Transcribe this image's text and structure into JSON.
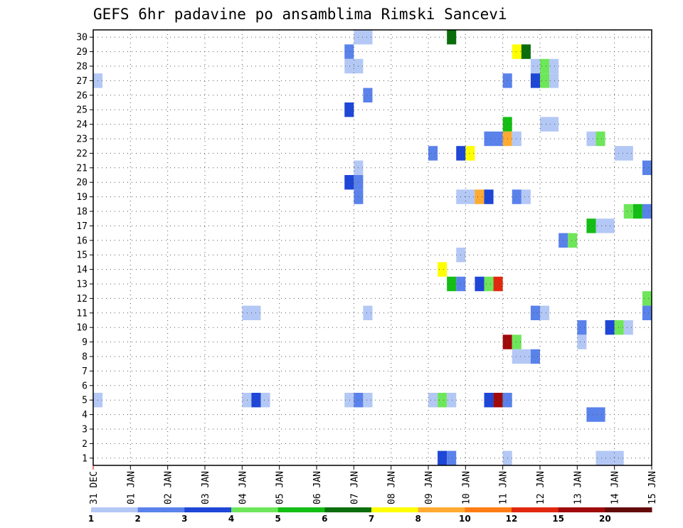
{
  "chart_data": {
    "type": "heatmap",
    "title": "GEFS 6hr padavine po ansamblima Rimski Sancevi",
    "xlabel": "",
    "ylabel": "",
    "x_ticks": [
      "31 DEC",
      "01 JAN",
      "02 JAN",
      "03 JAN",
      "04 JAN",
      "05 JAN",
      "06 JAN",
      "07 JAN",
      "08 JAN",
      "09 JAN",
      "10 JAN",
      "11 JAN",
      "12 JAN",
      "13 JAN",
      "14 JAN",
      "15 JAN"
    ],
    "y_ticks": [
      "1",
      "2",
      "3",
      "4",
      "5",
      "6",
      "7",
      "8",
      "9",
      "10",
      "11",
      "12",
      "13",
      "14",
      "15",
      "16",
      "17",
      "18",
      "19",
      "20",
      "21",
      "22",
      "23",
      "24",
      "25",
      "26",
      "27",
      "28",
      "29",
      "30"
    ],
    "xlim": [
      0,
      15
    ],
    "ylim": [
      0.5,
      30.5
    ],
    "grid": true,
    "colorbar": {
      "labels": [
        "1",
        "2",
        "3",
        "4",
        "5",
        "6",
        "7",
        "8",
        "10",
        "12",
        "15",
        "20"
      ],
      "colors": [
        "#b4c8f5",
        "#5a82eb",
        "#1e46d7",
        "#6ee65a",
        "#14be14",
        "#0a6e0a",
        "#ffff00",
        "#ffaa32",
        "#ff7d14",
        "#e1280f",
        "#a00a0a",
        "#640a0a"
      ]
    },
    "cells": [
      {
        "member": 30,
        "x": 7.0,
        "w": 0.5,
        "bin": 0
      },
      {
        "member": 30,
        "x": 9.5,
        "w": 0.25,
        "bin": 5
      },
      {
        "member": 29,
        "x": 6.75,
        "w": 0.25,
        "bin": 1
      },
      {
        "member": 29,
        "x": 11.25,
        "w": 0.25,
        "bin": 6
      },
      {
        "member": 29,
        "x": 11.5,
        "w": 0.25,
        "bin": 5
      },
      {
        "member": 28,
        "x": 6.75,
        "w": 0.5,
        "bin": 0
      },
      {
        "member": 28,
        "x": 11.75,
        "w": 0.25,
        "bin": 0
      },
      {
        "member": 28,
        "x": 12.0,
        "w": 0.25,
        "bin": 3
      },
      {
        "member": 28,
        "x": 12.25,
        "w": 0.25,
        "bin": 0
      },
      {
        "member": 27,
        "x": 0.0,
        "w": 0.25,
        "bin": 0
      },
      {
        "member": 27,
        "x": 11.0,
        "w": 0.25,
        "bin": 1
      },
      {
        "member": 27,
        "x": 11.75,
        "w": 0.25,
        "bin": 2
      },
      {
        "member": 27,
        "x": 12.0,
        "w": 0.25,
        "bin": 3
      },
      {
        "member": 27,
        "x": 12.25,
        "w": 0.25,
        "bin": 0
      },
      {
        "member": 26,
        "x": 7.25,
        "w": 0.25,
        "bin": 1
      },
      {
        "member": 25,
        "x": 6.75,
        "w": 0.25,
        "bin": 2
      },
      {
        "member": 24,
        "x": 11.0,
        "w": 0.25,
        "bin": 4
      },
      {
        "member": 24,
        "x": 12.0,
        "w": 0.5,
        "bin": 0
      },
      {
        "member": 23,
        "x": 10.5,
        "w": 0.5,
        "bin": 1
      },
      {
        "member": 23,
        "x": 11.0,
        "w": 0.25,
        "bin": 7
      },
      {
        "member": 23,
        "x": 11.25,
        "w": 0.25,
        "bin": 0
      },
      {
        "member": 23,
        "x": 13.25,
        "w": 0.25,
        "bin": 0
      },
      {
        "member": 23,
        "x": 13.5,
        "w": 0.25,
        "bin": 3
      },
      {
        "member": 22,
        "x": 9.0,
        "w": 0.25,
        "bin": 1
      },
      {
        "member": 22,
        "x": 9.75,
        "w": 0.25,
        "bin": 2
      },
      {
        "member": 22,
        "x": 10.0,
        "w": 0.25,
        "bin": 6
      },
      {
        "member": 22,
        "x": 14.0,
        "w": 0.5,
        "bin": 0
      },
      {
        "member": 21,
        "x": 7.0,
        "w": 0.25,
        "bin": 0
      },
      {
        "member": 21,
        "x": 14.75,
        "w": 0.25,
        "bin": 1
      },
      {
        "member": 20,
        "x": 6.75,
        "w": 0.25,
        "bin": 2
      },
      {
        "member": 20,
        "x": 7.0,
        "w": 0.25,
        "bin": 1
      },
      {
        "member": 19,
        "x": 7.0,
        "w": 0.25,
        "bin": 1
      },
      {
        "member": 19,
        "x": 9.75,
        "w": 0.5,
        "bin": 0
      },
      {
        "member": 19,
        "x": 10.25,
        "w": 0.25,
        "bin": 7
      },
      {
        "member": 19,
        "x": 10.5,
        "w": 0.25,
        "bin": 2
      },
      {
        "member": 19,
        "x": 11.25,
        "w": 0.25,
        "bin": 1
      },
      {
        "member": 19,
        "x": 11.5,
        "w": 0.25,
        "bin": 0
      },
      {
        "member": 18,
        "x": 14.25,
        "w": 0.25,
        "bin": 3
      },
      {
        "member": 18,
        "x": 14.5,
        "w": 0.25,
        "bin": 4
      },
      {
        "member": 18,
        "x": 14.75,
        "w": 0.25,
        "bin": 1
      },
      {
        "member": 17,
        "x": 13.25,
        "w": 0.25,
        "bin": 4
      },
      {
        "member": 17,
        "x": 13.5,
        "w": 0.5,
        "bin": 0
      },
      {
        "member": 16,
        "x": 12.5,
        "w": 0.25,
        "bin": 1
      },
      {
        "member": 16,
        "x": 12.75,
        "w": 0.25,
        "bin": 3
      },
      {
        "member": 15,
        "x": 9.75,
        "w": 0.25,
        "bin": 0
      },
      {
        "member": 14,
        "x": 9.25,
        "w": 0.25,
        "bin": 6
      },
      {
        "member": 13,
        "x": 9.5,
        "w": 0.25,
        "bin": 4
      },
      {
        "member": 13,
        "x": 9.75,
        "w": 0.25,
        "bin": 1
      },
      {
        "member": 13,
        "x": 10.25,
        "w": 0.25,
        "bin": 2
      },
      {
        "member": 13,
        "x": 10.5,
        "w": 0.25,
        "bin": 3
      },
      {
        "member": 13,
        "x": 10.75,
        "w": 0.25,
        "bin": 9
      },
      {
        "member": 12,
        "x": 14.75,
        "w": 0.25,
        "bin": 3
      },
      {
        "member": 11,
        "x": 4.0,
        "w": 0.5,
        "bin": 0
      },
      {
        "member": 11,
        "x": 7.25,
        "w": 0.25,
        "bin": 0
      },
      {
        "member": 11,
        "x": 11.75,
        "w": 0.25,
        "bin": 1
      },
      {
        "member": 11,
        "x": 12.0,
        "w": 0.25,
        "bin": 0
      },
      {
        "member": 11,
        "x": 14.75,
        "w": 0.25,
        "bin": 1
      },
      {
        "member": 10,
        "x": 13.0,
        "w": 0.25,
        "bin": 1
      },
      {
        "member": 10,
        "x": 13.75,
        "w": 0.25,
        "bin": 2
      },
      {
        "member": 10,
        "x": 14.0,
        "w": 0.25,
        "bin": 3
      },
      {
        "member": 10,
        "x": 14.25,
        "w": 0.25,
        "bin": 0
      },
      {
        "member": 9,
        "x": 11.0,
        "w": 0.25,
        "bin": 10
      },
      {
        "member": 9,
        "x": 11.25,
        "w": 0.25,
        "bin": 3
      },
      {
        "member": 9,
        "x": 13.0,
        "w": 0.25,
        "bin": 0
      },
      {
        "member": 8,
        "x": 11.25,
        "w": 0.5,
        "bin": 0
      },
      {
        "member": 8,
        "x": 11.75,
        "w": 0.25,
        "bin": 1
      },
      {
        "member": 5,
        "x": 0.0,
        "w": 0.25,
        "bin": 0
      },
      {
        "member": 5,
        "x": 4.0,
        "w": 0.25,
        "bin": 0
      },
      {
        "member": 5,
        "x": 4.25,
        "w": 0.25,
        "bin": 2
      },
      {
        "member": 5,
        "x": 4.5,
        "w": 0.25,
        "bin": 0
      },
      {
        "member": 5,
        "x": 6.75,
        "w": 0.25,
        "bin": 0
      },
      {
        "member": 5,
        "x": 7.0,
        "w": 0.25,
        "bin": 1
      },
      {
        "member": 5,
        "x": 7.25,
        "w": 0.25,
        "bin": 0
      },
      {
        "member": 5,
        "x": 9.0,
        "w": 0.25,
        "bin": 0
      },
      {
        "member": 5,
        "x": 9.25,
        "w": 0.25,
        "bin": 3
      },
      {
        "member": 5,
        "x": 9.5,
        "w": 0.25,
        "bin": 0
      },
      {
        "member": 5,
        "x": 10.5,
        "w": 0.25,
        "bin": 2
      },
      {
        "member": 5,
        "x": 10.75,
        "w": 0.25,
        "bin": 10
      },
      {
        "member": 5,
        "x": 11.0,
        "w": 0.25,
        "bin": 1
      },
      {
        "member": 4,
        "x": 13.25,
        "w": 0.5,
        "bin": 1
      },
      {
        "member": 1,
        "x": 9.25,
        "w": 0.25,
        "bin": 2
      },
      {
        "member": 1,
        "x": 9.5,
        "w": 0.25,
        "bin": 1
      },
      {
        "member": 1,
        "x": 11.0,
        "w": 0.25,
        "bin": 0
      },
      {
        "member": 1,
        "x": 13.5,
        "w": 0.75,
        "bin": 0
      }
    ]
  }
}
